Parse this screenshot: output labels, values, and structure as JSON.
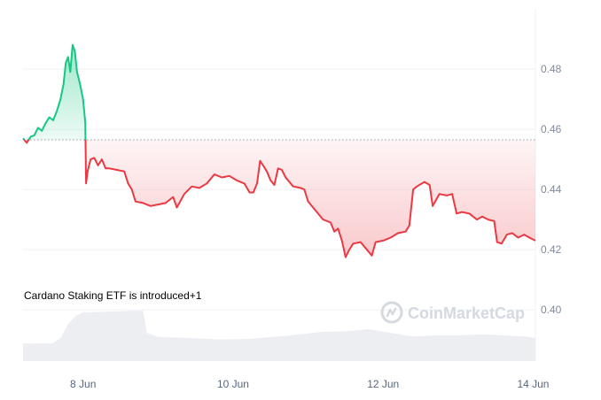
{
  "chart_data": {
    "type": "area",
    "title": "",
    "xlabel": "",
    "ylabel": "",
    "baseline": 0.4565,
    "ylim": [
      0.383,
      0.5
    ],
    "xlim": [
      7.2,
      14.03
    ],
    "y_ticks": [
      {
        "value": 0.48,
        "label": "0.48"
      },
      {
        "value": 0.46,
        "label": "0.46"
      },
      {
        "value": 0.44,
        "label": "0.44"
      },
      {
        "value": 0.42,
        "label": "0.42"
      },
      {
        "value": 0.4,
        "label": "0.40"
      }
    ],
    "x_ticks": [
      {
        "value": 8,
        "label": "8 Jun"
      },
      {
        "value": 10,
        "label": "10 Jun"
      },
      {
        "value": 12,
        "label": "12 Jun"
      },
      {
        "value": 14,
        "label": "14 Jun"
      }
    ],
    "x_unit": "June (day of month)",
    "series": [
      {
        "values": [
          [
            7.2,
            0.457
          ],
          [
            7.25,
            0.4555
          ],
          [
            7.3,
            0.4575
          ],
          [
            7.35,
            0.458
          ],
          [
            7.4,
            0.4605
          ],
          [
            7.45,
            0.4595
          ],
          [
            7.5,
            0.462
          ],
          [
            7.55,
            0.464
          ],
          [
            7.6,
            0.463
          ],
          [
            7.65,
            0.466
          ],
          [
            7.7,
            0.47
          ],
          [
            7.74,
            0.475
          ],
          [
            7.77,
            0.482
          ],
          [
            7.8,
            0.484
          ],
          [
            7.83,
            0.479
          ],
          [
            7.86,
            0.488
          ],
          [
            7.89,
            0.486
          ],
          [
            7.92,
            0.479
          ],
          [
            7.96,
            0.475
          ],
          [
            8.0,
            0.47
          ],
          [
            8.03,
            0.4622
          ],
          [
            8.04,
            0.442
          ],
          [
            8.06,
            0.446
          ],
          [
            8.1,
            0.45
          ],
          [
            8.15,
            0.4505
          ],
          [
            8.2,
            0.448
          ],
          [
            8.25,
            0.45
          ],
          [
            8.3,
            0.447
          ],
          [
            8.35,
            0.447
          ],
          [
            8.45,
            0.4465
          ],
          [
            8.55,
            0.446
          ],
          [
            8.6,
            0.442
          ],
          [
            8.65,
            0.44
          ],
          [
            8.7,
            0.436
          ],
          [
            8.8,
            0.4355
          ],
          [
            8.9,
            0.4345
          ],
          [
            9.0,
            0.435
          ],
          [
            9.1,
            0.4355
          ],
          [
            9.2,
            0.4375
          ],
          [
            9.25,
            0.434
          ],
          [
            9.35,
            0.4385
          ],
          [
            9.45,
            0.441
          ],
          [
            9.55,
            0.4405
          ],
          [
            9.65,
            0.442
          ],
          [
            9.75,
            0.445
          ],
          [
            9.85,
            0.444
          ],
          [
            9.95,
            0.4445
          ],
          [
            10.05,
            0.443
          ],
          [
            10.15,
            0.442
          ],
          [
            10.22,
            0.439
          ],
          [
            10.27,
            0.439
          ],
          [
            10.32,
            0.442
          ],
          [
            10.36,
            0.4495
          ],
          [
            10.4,
            0.448
          ],
          [
            10.45,
            0.446
          ],
          [
            10.5,
            0.443
          ],
          [
            10.55,
            0.4415
          ],
          [
            10.6,
            0.447
          ],
          [
            10.65,
            0.4465
          ],
          [
            10.7,
            0.444
          ],
          [
            10.8,
            0.441
          ],
          [
            10.9,
            0.4405
          ],
          [
            10.95,
            0.44
          ],
          [
            11.0,
            0.436
          ],
          [
            11.1,
            0.433
          ],
          [
            11.2,
            0.43
          ],
          [
            11.3,
            0.429
          ],
          [
            11.35,
            0.426
          ],
          [
            11.4,
            0.427
          ],
          [
            11.45,
            0.423
          ],
          [
            11.5,
            0.4175
          ],
          [
            11.55,
            0.42
          ],
          [
            11.6,
            0.422
          ],
          [
            11.7,
            0.4225
          ],
          [
            11.8,
            0.4195
          ],
          [
            11.85,
            0.418
          ],
          [
            11.9,
            0.4225
          ],
          [
            12.0,
            0.423
          ],
          [
            12.1,
            0.424
          ],
          [
            12.2,
            0.4255
          ],
          [
            12.3,
            0.426
          ],
          [
            12.35,
            0.428
          ],
          [
            12.4,
            0.44
          ],
          [
            12.45,
            0.441
          ],
          [
            12.55,
            0.4425
          ],
          [
            12.62,
            0.4415
          ],
          [
            12.66,
            0.4345
          ],
          [
            12.75,
            0.4385
          ],
          [
            12.85,
            0.438
          ],
          [
            12.92,
            0.4385
          ],
          [
            12.98,
            0.432
          ],
          [
            13.05,
            0.4325
          ],
          [
            13.15,
            0.432
          ],
          [
            13.25,
            0.43
          ],
          [
            13.32,
            0.431
          ],
          [
            13.4,
            0.43
          ],
          [
            13.48,
            0.4295
          ],
          [
            13.52,
            0.4225
          ],
          [
            13.58,
            0.422
          ],
          [
            13.65,
            0.425
          ],
          [
            13.72,
            0.4255
          ],
          [
            13.8,
            0.424
          ],
          [
            13.88,
            0.425
          ],
          [
            13.95,
            0.424
          ],
          [
            14.03,
            0.423
          ]
        ]
      }
    ],
    "volume": [
      [
        7.2,
        0.3
      ],
      [
        7.45,
        0.33
      ],
      [
        7.6,
        0.35
      ],
      [
        7.7,
        0.45
      ],
      [
        7.8,
        0.72
      ],
      [
        7.9,
        0.88
      ],
      [
        8.0,
        0.95
      ],
      [
        8.3,
        0.96
      ],
      [
        8.6,
        0.98
      ],
      [
        8.8,
        0.98
      ],
      [
        8.85,
        0.55
      ],
      [
        9.0,
        0.47
      ],
      [
        9.4,
        0.45
      ],
      [
        9.8,
        0.42
      ],
      [
        10.2,
        0.43
      ],
      [
        10.6,
        0.48
      ],
      [
        10.9,
        0.52
      ],
      [
        11.2,
        0.57
      ],
      [
        11.5,
        0.58
      ],
      [
        11.8,
        0.62
      ],
      [
        12.1,
        0.55
      ],
      [
        12.4,
        0.48
      ],
      [
        12.7,
        0.5
      ],
      [
        13.0,
        0.5
      ],
      [
        13.3,
        0.52
      ],
      [
        13.6,
        0.5
      ],
      [
        13.9,
        0.48
      ],
      [
        14.03,
        0.45
      ]
    ],
    "annotation": "Cardano Staking ETF is introduced+1",
    "watermark": "CoinMarketCap",
    "grid": true,
    "colors": {
      "up": "#16c784",
      "down": "#ea3943",
      "baseline": "#8f95a0",
      "grid": "#eff2f5",
      "volume": "#eceef2"
    }
  }
}
